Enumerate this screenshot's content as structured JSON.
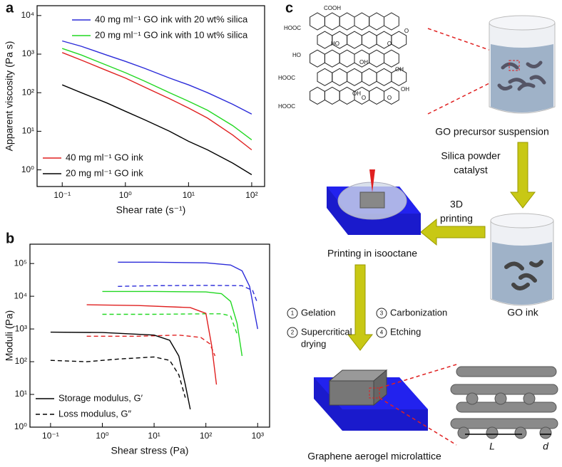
{
  "chart_data": [
    {
      "type": "line",
      "panel": "a",
      "xlabel": "Shear rate (s⁻¹)",
      "ylabel": "Apparent viscosity (Pa s)",
      "xscale": "log",
      "yscale": "log",
      "xlim": [
        0.04,
        160
      ],
      "ylim": [
        0.37,
        18000
      ],
      "xticks": [
        {
          "value": 0.1,
          "label": "10⁻¹"
        },
        {
          "value": 1,
          "label": "10⁰"
        },
        {
          "value": 10,
          "label": "10¹"
        },
        {
          "value": 100,
          "label": "10²"
        }
      ],
      "yticks": [
        {
          "value": 1,
          "label": "10⁰"
        },
        {
          "value": 10,
          "label": "10¹"
        },
        {
          "value": 100,
          "label": "10²"
        },
        {
          "value": 1000,
          "label": "10³"
        },
        {
          "value": 10000,
          "label": "10⁴"
        }
      ],
      "x": [
        0.1,
        0.2,
        0.5,
        1,
        2,
        5,
        10,
        20,
        50,
        100
      ],
      "series": [
        {
          "name": "40 mg ml⁻¹ GO ink with 20 wt% silica",
          "color": "#2b2bd9",
          "legend_loc": "upper right",
          "values": [
            2200,
            1600,
            950,
            650,
            430,
            240,
            160,
            100,
            50,
            28
          ]
        },
        {
          "name": "20 mg ml⁻¹ GO ink with 10 wt% silica",
          "color": "#22d822",
          "legend_loc": "upper right",
          "values": [
            1400,
            950,
            520,
            330,
            200,
            100,
            60,
            35,
            14,
            6
          ]
        },
        {
          "name": "40 mg ml⁻¹ GO ink",
          "color": "#e02020",
          "legend_loc": "lower left",
          "values": [
            1100,
            700,
            380,
            240,
            140,
            70,
            40,
            22,
            8,
            3.3
          ]
        },
        {
          "name": "20 mg ml⁻¹ GO ink",
          "color": "#000000",
          "legend_loc": "lower left",
          "values": [
            160,
            100,
            55,
            33,
            20,
            10,
            5.5,
            3.3,
            1.5,
            0.75
          ]
        }
      ]
    },
    {
      "type": "line",
      "panel": "b",
      "xlabel": "Shear stress (Pa)",
      "ylabel": "Moduli (Pa)",
      "xscale": "log",
      "yscale": "log",
      "xlim": [
        0.04,
        1700
      ],
      "ylim": [
        1,
        390000
      ],
      "xticks": [
        {
          "value": 0.1,
          "label": "10⁻¹"
        },
        {
          "value": 1,
          "label": "10⁰"
        },
        {
          "value": 10,
          "label": "10¹"
        },
        {
          "value": 100,
          "label": "10²"
        },
        {
          "value": 1000,
          "label": "10³"
        }
      ],
      "yticks": [
        {
          "value": 1,
          "label": "10⁰"
        },
        {
          "value": 10,
          "label": "10¹"
        },
        {
          "value": 100,
          "label": "10²"
        },
        {
          "value": 1000,
          "label": "10³"
        },
        {
          "value": 10000,
          "label": "10⁴"
        },
        {
          "value": 100000,
          "label": "10⁵"
        }
      ],
      "series": [
        {
          "color": "#2b2bd9",
          "dash": false,
          "x": [
            2,
            10,
            100,
            300,
            500,
            700,
            1000
          ],
          "values": [
            110000,
            110000,
            105000,
            90000,
            60000,
            20000,
            1000
          ]
        },
        {
          "color": "#2b2bd9",
          "dash": true,
          "x": [
            2,
            10,
            100,
            500,
            800,
            1000
          ],
          "values": [
            20000,
            21000,
            21500,
            21000,
            15000,
            6000
          ]
        },
        {
          "color": "#22d822",
          "dash": false,
          "x": [
            1,
            10,
            100,
            200,
            300,
            400,
            500
          ],
          "values": [
            14000,
            14000,
            13500,
            12000,
            7000,
            1500,
            150
          ]
        },
        {
          "color": "#22d822",
          "dash": true,
          "x": [
            1,
            10,
            100,
            200,
            300,
            400
          ],
          "values": [
            2800,
            2800,
            2900,
            2900,
            2500,
            700
          ]
        },
        {
          "color": "#e02020",
          "dash": false,
          "x": [
            0.5,
            5,
            50,
            100,
            130,
            160
          ],
          "values": [
            5500,
            5200,
            4500,
            3000,
            300,
            20
          ]
        },
        {
          "color": "#e02020",
          "dash": true,
          "x": [
            0.5,
            5,
            30,
            80,
            120,
            150
          ],
          "values": [
            600,
            600,
            650,
            550,
            350,
            150
          ]
        },
        {
          "name": "Storage modulus, G′",
          "color": "#000000",
          "dash": false,
          "legend_loc": "lower left",
          "x": [
            0.1,
            1,
            10,
            20,
            30,
            40,
            50
          ],
          "values": [
            800,
            780,
            650,
            450,
            150,
            20,
            3.5
          ]
        },
        {
          "name": "Loss modulus, G″",
          "color": "#000000",
          "dash": true,
          "legend_loc": "lower left",
          "x": [
            0.1,
            0.5,
            2,
            10,
            20,
            30,
            40
          ],
          "values": [
            110,
            100,
            120,
            140,
            110,
            40,
            8
          ]
        }
      ]
    }
  ],
  "diagram": {
    "panel": "c",
    "structure_labels": [
      "COOH",
      "HOOC",
      "HO",
      "HOOC",
      "HOOC",
      "HO",
      "OH",
      "O",
      "OH",
      "O",
      "O",
      "OH",
      "OH",
      "O"
    ],
    "precursor": "GO precursor suspension",
    "catalyst": [
      "Silica powder",
      "catalyst"
    ],
    "printing_step": [
      "3D",
      "printing"
    ],
    "ink": "GO ink",
    "printing": "Printing in isooctane",
    "steps": [
      {
        "number": "1",
        "label": [
          "Gelation"
        ]
      },
      {
        "number": "2",
        "label": [
          "Supercritical",
          "drying"
        ]
      },
      {
        "number": "3",
        "label": [
          "Carbonization"
        ]
      },
      {
        "number": "4",
        "label": [
          "Etching"
        ]
      }
    ],
    "product": "Graphene aerogel microlattice",
    "length": "L",
    "diameter": "d"
  }
}
